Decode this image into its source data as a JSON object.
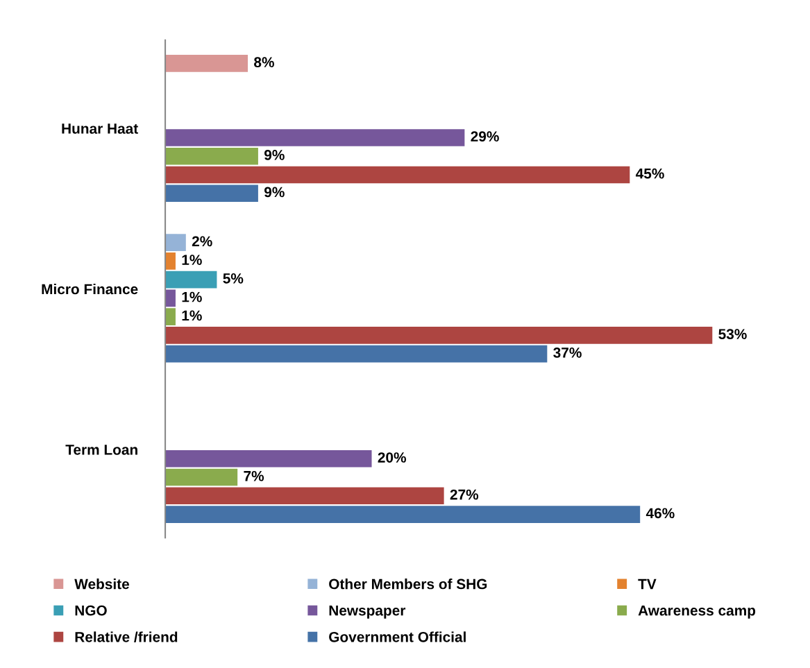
{
  "chart_data": {
    "type": "bar",
    "orientation": "horizontal",
    "categories": [
      "Hunar Haat",
      "Micro Finance",
      "Term Loan"
    ],
    "series": [
      {
        "name": "Website",
        "color": "#d99694",
        "values": [
          8,
          null,
          null
        ],
        "value_labels": [
          "8%",
          null,
          null
        ]
      },
      {
        "name": "Other Members of SHG",
        "color": "#95b3d7",
        "values": [
          null,
          2,
          null
        ],
        "value_labels": [
          null,
          "2%",
          null
        ]
      },
      {
        "name": "TV",
        "color": "#e3822f",
        "values": [
          null,
          1,
          null
        ],
        "value_labels": [
          null,
          "1%",
          null
        ]
      },
      {
        "name": "NGO",
        "color": "#3a9fb5",
        "values": [
          null,
          5,
          null
        ],
        "value_labels": [
          null,
          "5%",
          null
        ]
      },
      {
        "name": "Newspaper",
        "color": "#76579b",
        "values": [
          29,
          1,
          20
        ],
        "value_labels": [
          "29%",
          "1%",
          "20%"
        ]
      },
      {
        "name": "Awareness camp",
        "color": "#8aab4d",
        "values": [
          9,
          1,
          7
        ],
        "value_labels": [
          "9%",
          "1%",
          "7%"
        ]
      },
      {
        "name": "Relative /friend",
        "color": "#ad4541",
        "values": [
          45,
          53,
          27
        ],
        "value_labels": [
          "45%",
          "53%",
          "27%"
        ]
      },
      {
        "name": "Government Official",
        "color": "#4572a7",
        "values": [
          9,
          37,
          46
        ],
        "value_labels": [
          "9%",
          "37%",
          "46%"
        ]
      }
    ],
    "legend": "bottom",
    "grid": false
  }
}
